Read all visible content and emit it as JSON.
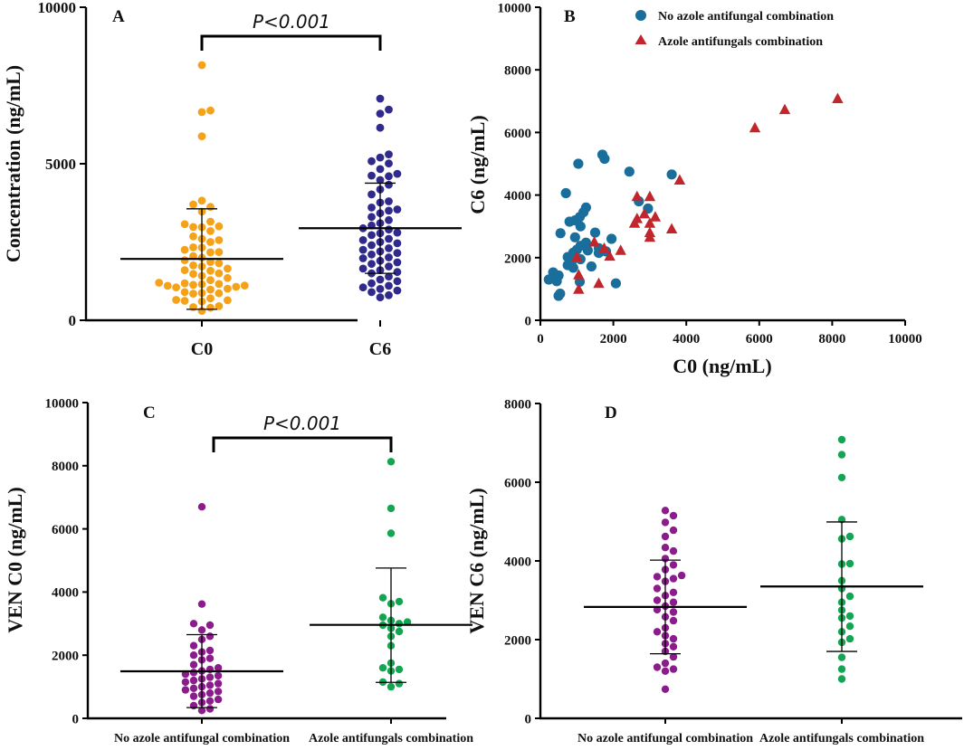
{
  "chart_data": [
    {
      "panel": "A",
      "type": "scatter",
      "subtype": "dot-strip",
      "title": "",
      "xlabel": "",
      "ylabel": "Concentration (ng/mL)",
      "ylim": [
        0,
        10000
      ],
      "yticks": [
        0,
        5000,
        10000
      ],
      "categories": [
        "C0",
        "C6"
      ],
      "significance": "P<0.001",
      "series": [
        {
          "name": "C0",
          "color": "#f5a21b",
          "mean": 1960,
          "sd_low": 350,
          "sd_high": 3560,
          "values": [
            8150,
            6700,
            6650,
            5880,
            3820,
            3700,
            3620,
            3470,
            3150,
            3070,
            3000,
            2980,
            2970,
            2850,
            2680,
            2600,
            2560,
            2500,
            2330,
            2320,
            2250,
            2180,
            2170,
            2050,
            2000,
            1920,
            1860,
            1820,
            1750,
            1720,
            1650,
            1600,
            1580,
            1500,
            1480,
            1420,
            1350,
            1280,
            1200,
            1180,
            1160,
            1150,
            1130,
            1110,
            1100,
            1070,
            1050,
            1010,
            980,
            900,
            870,
            860,
            850,
            700,
            650,
            640,
            620,
            600,
            450,
            420,
            400,
            300
          ]
        },
        {
          "name": "C6",
          "color": "#2f2a8c",
          "mean": 2940,
          "sd_low": 1500,
          "sd_high": 4380,
          "values": [
            7080,
            6730,
            6600,
            6150,
            5300,
            5200,
            5080,
            5010,
            4830,
            4680,
            4620,
            4600,
            4480,
            4330,
            4180,
            4020,
            3800,
            3760,
            3600,
            3540,
            3500,
            3420,
            3300,
            3200,
            3100,
            3030,
            2940,
            2900,
            2800,
            2780,
            2720,
            2600,
            2560,
            2500,
            2460,
            2400,
            2300,
            2250,
            2200,
            2150,
            2100,
            2010,
            1980,
            1900,
            1850,
            1800,
            1720,
            1650,
            1600,
            1540,
            1500,
            1400,
            1300,
            1250,
            1180,
            1100,
            1050,
            1000,
            950,
            900,
            800,
            730
          ]
        }
      ]
    },
    {
      "panel": "B",
      "type": "scatter",
      "title": "",
      "xlabel": "C0 (ng/mL)",
      "ylabel": "C6 (ng/mL)",
      "xlim": [
        0,
        10000
      ],
      "ylim": [
        0,
        10000
      ],
      "xticks": [
        0,
        2000,
        4000,
        6000,
        8000,
        10000
      ],
      "yticks": [
        0,
        2000,
        4000,
        6000,
        8000,
        10000
      ],
      "legend_position": "top",
      "series": [
        {
          "name": "No azole antifungal combination",
          "color": "#1a6e9c",
          "marker": "circle",
          "points": [
            [
              1700,
              5290
            ],
            [
              1760,
              5160
            ],
            [
              1040,
              5000
            ],
            [
              2440,
              4750
            ],
            [
              3600,
              4660
            ],
            [
              700,
              4060
            ],
            [
              1250,
              3600
            ],
            [
              1180,
              3450
            ],
            [
              1080,
              3300
            ],
            [
              950,
              3190
            ],
            [
              800,
              3150
            ],
            [
              1100,
              3000
            ],
            [
              2950,
              3570
            ],
            [
              2700,
              3800
            ],
            [
              1500,
              2800
            ],
            [
              550,
              2780
            ],
            [
              950,
              2650
            ],
            [
              1950,
              2600
            ],
            [
              1250,
              2480
            ],
            [
              1100,
              2380
            ],
            [
              1600,
              2300
            ],
            [
              1000,
              2250
            ],
            [
              1300,
              2230
            ],
            [
              1800,
              2200
            ],
            [
              900,
              2160
            ],
            [
              750,
              2020
            ],
            [
              1100,
              1950
            ],
            [
              850,
              1850
            ],
            [
              750,
              1760
            ],
            [
              1400,
              1720
            ],
            [
              900,
              1680
            ],
            [
              350,
              1530
            ],
            [
              500,
              1430
            ],
            [
              230,
              1300
            ],
            [
              450,
              1250
            ],
            [
              1080,
              1230
            ],
            [
              2070,
              1180
            ],
            [
              540,
              850
            ],
            [
              500,
              780
            ],
            [
              1600,
              2150
            ]
          ]
        },
        {
          "name": "Azole antifungals combination",
          "color": "#c0262c",
          "marker": "triangle",
          "points": [
            [
              8150,
              7080
            ],
            [
              6700,
              6730
            ],
            [
              5880,
              6150
            ],
            [
              3820,
              4480
            ],
            [
              2650,
              3950
            ],
            [
              3000,
              3950
            ],
            [
              3150,
              3300
            ],
            [
              2850,
              3400
            ],
            [
              2650,
              3250
            ],
            [
              2580,
              3100
            ],
            [
              3000,
              3100
            ],
            [
              3600,
              2920
            ],
            [
              3000,
              2800
            ],
            [
              3000,
              2650
            ],
            [
              2200,
              2230
            ],
            [
              1900,
              2050
            ],
            [
              1000,
              2020
            ],
            [
              1750,
              2300
            ],
            [
              1480,
              2500
            ],
            [
              1050,
              1450
            ],
            [
              1600,
              1180
            ],
            [
              1050,
              990
            ]
          ]
        }
      ]
    },
    {
      "panel": "C",
      "type": "scatter",
      "subtype": "dot-strip",
      "title": "",
      "xlabel": "",
      "ylabel": "VEN C0 (ng/mL)",
      "ylim": [
        0,
        10000
      ],
      "yticks": [
        0,
        2000,
        4000,
        6000,
        8000,
        10000
      ],
      "categories": [
        "No azole antifungal combination",
        "Azole antifungals combination"
      ],
      "significance": "P<0.001",
      "series": [
        {
          "name": "No azole antifungal combination",
          "color": "#8b1c8c",
          "mean": 1490,
          "sd_low": 340,
          "sd_high": 2650,
          "values": [
            6700,
            3620,
            3000,
            2950,
            2800,
            2600,
            2500,
            2300,
            2150,
            2100,
            2000,
            1900,
            1850,
            1700,
            1600,
            1550,
            1500,
            1450,
            1400,
            1350,
            1300,
            1250,
            1200,
            1150,
            1100,
            1050,
            1000,
            950,
            900,
            850,
            800,
            750,
            700,
            600,
            550,
            500,
            400,
            300,
            250
          ]
        },
        {
          "name": "Azole antifungals combination",
          "color": "#12a552",
          "mean": 2960,
          "sd_low": 1140,
          "sd_high": 4760,
          "values": [
            8130,
            6650,
            5860,
            3820,
            3700,
            3630,
            3200,
            3100,
            3050,
            3000,
            2950,
            2850,
            2750,
            2600,
            2300,
            1750,
            1600,
            1550,
            1500,
            1150,
            1100,
            1000
          ]
        }
      ]
    },
    {
      "panel": "D",
      "type": "scatter",
      "subtype": "dot-strip",
      "title": "",
      "xlabel": "",
      "ylabel": "VEN C6 (ng/mL)",
      "ylim": [
        0,
        8000
      ],
      "yticks": [
        0,
        2000,
        4000,
        6000,
        8000
      ],
      "categories": [
        "No azole antifungal combination",
        "Azole antifungals combination"
      ],
      "series": [
        {
          "name": "No azole antifungal combination",
          "color": "#8b1c8c",
          "mean": 2830,
          "sd_low": 1640,
          "sd_high": 4020,
          "values": [
            5280,
            5150,
            4980,
            4780,
            4620,
            4340,
            4250,
            4060,
            3900,
            3780,
            3630,
            3600,
            3550,
            3480,
            3300,
            3200,
            3120,
            3000,
            2950,
            2850,
            2760,
            2700,
            2580,
            2480,
            2300,
            2200,
            2100,
            2020,
            1900,
            1820,
            1700,
            1560,
            1400,
            1300,
            1250,
            1200,
            740
          ]
        },
        {
          "name": "Azole antifungals combination",
          "color": "#12a552",
          "mean": 3350,
          "sd_low": 1700,
          "sd_high": 4990,
          "values": [
            7080,
            6700,
            6120,
            5050,
            4620,
            4560,
            3920,
            3930,
            3500,
            3300,
            3100,
            2950,
            2750,
            2600,
            2550,
            2340,
            2200,
            2020,
            1930,
            1550,
            1250,
            1000
          ]
        }
      ]
    }
  ],
  "labels": {
    "panel_a": "A",
    "panel_b": "B",
    "panel_c": "C",
    "panel_d": "D"
  }
}
